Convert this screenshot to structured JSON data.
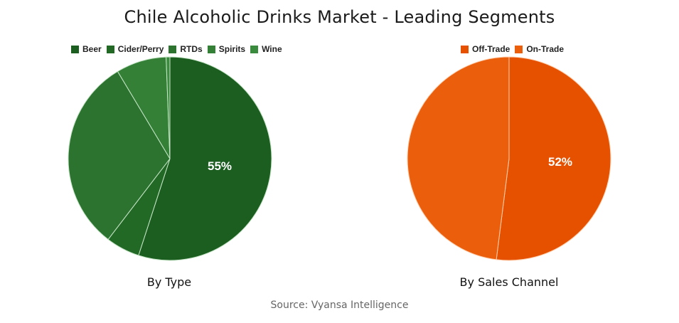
{
  "title": "Chile Alcoholic Drinks Market - Leading Segments",
  "source": "Source: Vyansa Intelligence",
  "chart_data": [
    {
      "type": "pie",
      "title": "By Type",
      "categories": [
        "Beer",
        "Cider/Perry",
        "RTDs",
        "Spirits",
        "Wine"
      ],
      "values": [
        55,
        5.4,
        31,
        8,
        0.6
      ],
      "colors": [
        "#1b5e20",
        "#236926",
        "#2b732e",
        "#338036",
        "#3a8b3d"
      ],
      "label_shown": "55%",
      "legend_position": "top"
    },
    {
      "type": "pie",
      "title": "By Sales Channel",
      "categories": [
        "Off-Trade",
        "On-Trade"
      ],
      "values": [
        52,
        48
      ],
      "colors": [
        "#e65100",
        "#ea5e0c"
      ],
      "label_shown": "52%",
      "legend_position": "top"
    }
  ],
  "left": {
    "subtitle": "By Type",
    "label": "55%",
    "legend": [
      "Beer",
      "Cider/Perry",
      "RTDs",
      "Spirits",
      "Wine"
    ]
  },
  "right": {
    "subtitle": "By Sales Channel",
    "label": "52%",
    "legend": [
      "Off-Trade",
      "On-Trade"
    ]
  }
}
